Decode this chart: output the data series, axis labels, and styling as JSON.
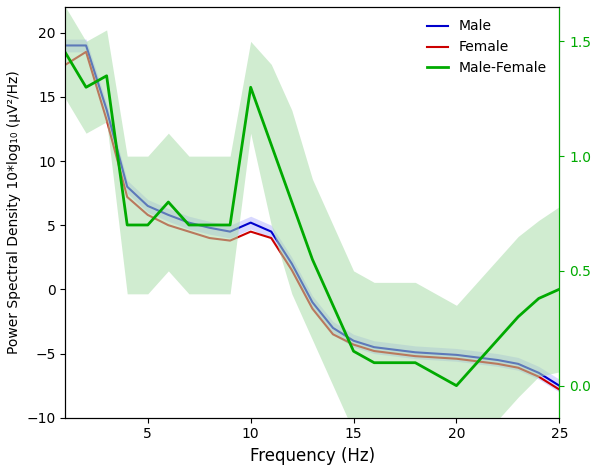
{
  "title": "",
  "xlabel": "Frequency (Hz)",
  "ylabel": "Power Spectral Density 10*log₁₀ (μV²/Hz)",
  "xlim": [
    1,
    25
  ],
  "ylim_left": [
    -10,
    22
  ],
  "ylim_right": [
    -0.14,
    1.65
  ],
  "yticks_left": [
    -10,
    -5,
    0,
    5,
    10,
    15,
    20
  ],
  "yticks_right": [
    0,
    0.5,
    1.0,
    1.5
  ],
  "xticks": [
    5,
    10,
    15,
    20,
    25
  ],
  "male_color": "#0000cc",
  "female_color": "#cc0000",
  "diff_color": "#00aa00",
  "shade_color_blue": "#aaaaff",
  "shade_color_green": "#aaddaa",
  "legend_labels": [
    "Male",
    "Female",
    "Male-Female"
  ],
  "freq": [
    1,
    2,
    3,
    4,
    5,
    6,
    7,
    8,
    9,
    10,
    11,
    12,
    13,
    14,
    15,
    16,
    17,
    18,
    19,
    20,
    21,
    22,
    23,
    24,
    25
  ],
  "male_mean": [
    19.0,
    19.0,
    14.0,
    8.0,
    6.5,
    5.8,
    5.2,
    4.8,
    4.5,
    5.2,
    4.5,
    2.0,
    -1.0,
    -3.0,
    -4.0,
    -4.5,
    -4.7,
    -4.9,
    -5.0,
    -5.1,
    -5.3,
    -5.5,
    -5.8,
    -6.5,
    -7.5
  ],
  "male_upper": [
    19.5,
    19.5,
    14.5,
    8.5,
    7.0,
    6.3,
    5.7,
    5.3,
    5.0,
    5.7,
    5.0,
    2.5,
    -0.5,
    -2.5,
    -3.5,
    -4.0,
    -4.2,
    -4.4,
    -4.5,
    -4.6,
    -4.8,
    -5.0,
    -5.3,
    -6.0,
    -7.0
  ],
  "male_lower": [
    18.5,
    18.5,
    13.5,
    7.5,
    6.0,
    5.3,
    4.7,
    4.3,
    4.0,
    4.7,
    4.0,
    1.5,
    -1.5,
    -3.5,
    -4.5,
    -5.0,
    -5.2,
    -5.4,
    -5.5,
    -5.6,
    -5.8,
    -6.0,
    -6.3,
    -7.0,
    -8.0
  ],
  "female_mean": [
    17.5,
    18.5,
    13.2,
    7.2,
    5.8,
    5.0,
    4.5,
    4.0,
    3.8,
    4.5,
    4.0,
    1.5,
    -1.5,
    -3.5,
    -4.3,
    -4.8,
    -5.0,
    -5.2,
    -5.3,
    -5.4,
    -5.6,
    -5.8,
    -6.1,
    -6.8,
    -7.8
  ],
  "diff_mean": [
    1.45,
    1.3,
    1.35,
    0.7,
    0.7,
    0.8,
    0.7,
    0.7,
    0.7,
    1.3,
    1.05,
    0.8,
    0.55,
    0.35,
    0.15,
    0.1,
    0.1,
    0.1,
    0.05,
    0.0,
    0.1,
    0.2,
    0.3,
    0.38,
    0.42
  ],
  "diff_upper": [
    1.65,
    1.5,
    1.55,
    1.0,
    1.0,
    1.1,
    1.0,
    1.0,
    1.0,
    1.5,
    1.4,
    1.2,
    0.9,
    0.7,
    0.5,
    0.45,
    0.45,
    0.45,
    0.4,
    0.35,
    0.45,
    0.55,
    0.65,
    0.72,
    0.78
  ],
  "diff_lower": [
    1.25,
    1.1,
    1.15,
    0.4,
    0.4,
    0.5,
    0.4,
    0.4,
    0.4,
    1.1,
    0.7,
    0.4,
    0.2,
    0.0,
    -0.2,
    -0.25,
    -0.25,
    -0.25,
    -0.3,
    -0.35,
    -0.25,
    -0.15,
    -0.05,
    0.04,
    0.06
  ]
}
